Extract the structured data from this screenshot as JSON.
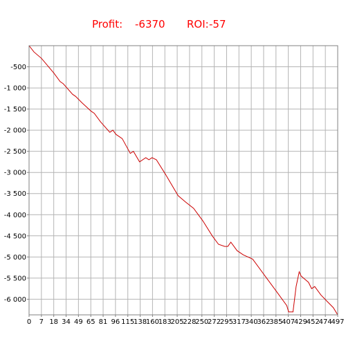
{
  "header": {
    "profit_label": "Profit:",
    "profit_value": "-6370",
    "roi_label": "ROI:",
    "roi_value": "-57",
    "text_color": "#ff0000"
  },
  "chart_data": {
    "type": "line",
    "title": "",
    "xlabel": "",
    "ylabel": "",
    "grid": true,
    "line_color": "#cc0000",
    "x_tick_labels": [
      "0",
      "7",
      "18",
      "34",
      "49",
      "65",
      "81",
      "96",
      "115",
      "138",
      "160",
      "183",
      "205",
      "228",
      "250",
      "272",
      "295",
      "317",
      "340",
      "362",
      "385",
      "407",
      "429",
      "452",
      "474",
      "497"
    ],
    "y_tick_labels": [
      "-500",
      "-1 000",
      "-1 500",
      "-2 000",
      "-2 500",
      "-3 000",
      "-3 500",
      "-4 000",
      "-4 500",
      "-5 000",
      "-5 500",
      "-6 000"
    ],
    "y_tick_values": [
      -500,
      -1000,
      -1500,
      -2000,
      -2500,
      -3000,
      -3500,
      -4000,
      -4500,
      -5000,
      -5500,
      -6000
    ],
    "xlim": [
      0,
      497
    ],
    "ylim": [
      -6370,
      0
    ],
    "series": [
      {
        "x": [
          0,
          8,
          20,
          40,
          50,
          55,
          70,
          75,
          85,
          100,
          105,
          115,
          130,
          135,
          140,
          150,
          163,
          168,
          178,
          188,
          193,
          198,
          205,
          220,
          240,
          252,
          265,
          280,
          295,
          305,
          315,
          320,
          325,
          330,
          335,
          345,
          360,
          380,
          400,
          415,
          418,
          425,
          430,
          435,
          438,
          442,
          450,
          455,
          460,
          470,
          480,
          490,
          497
        ],
        "y": [
          0,
          -150,
          -300,
          -650,
          -850,
          -900,
          -1150,
          -1200,
          -1350,
          -1550,
          -1600,
          -1800,
          -2050,
          -2000,
          -2100,
          -2200,
          -2550,
          -2500,
          -2750,
          -2650,
          -2700,
          -2650,
          -2700,
          -3050,
          -3550,
          -3700,
          -3850,
          -4150,
          -4500,
          -4700,
          -4750,
          -4750,
          -4650,
          -4750,
          -4850,
          -4950,
          -5050,
          -5450,
          -5850,
          -6150,
          -6300,
          -6300,
          -5700,
          -5350,
          -5450,
          -5500,
          -5600,
          -5750,
          -5700,
          -5900,
          -6050,
          -6200,
          -6370
        ]
      }
    ]
  }
}
